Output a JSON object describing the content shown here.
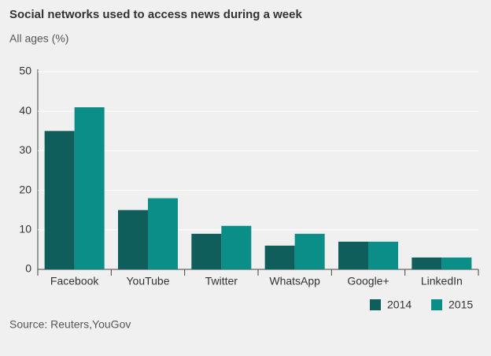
{
  "chart_data": {
    "type": "bar",
    "title": "Social networks used to access news during a week",
    "subtitle": "All ages (%)",
    "categories": [
      "Facebook",
      "YouTube",
      "Twitter",
      "WhatsApp",
      "Google+",
      "LinkedIn"
    ],
    "series": [
      {
        "name": "2014",
        "color": "#0f5e5c",
        "values": [
          35,
          15,
          9,
          6,
          7,
          3
        ]
      },
      {
        "name": "2015",
        "color": "#0b8e88",
        "values": [
          41,
          18,
          11,
          9,
          7,
          3
        ]
      }
    ],
    "ylim": [
      0,
      50
    ],
    "yticks": [
      0,
      10,
      20,
      30,
      40,
      50
    ],
    "grid": true,
    "source": "Source: Reuters,YouGov"
  }
}
